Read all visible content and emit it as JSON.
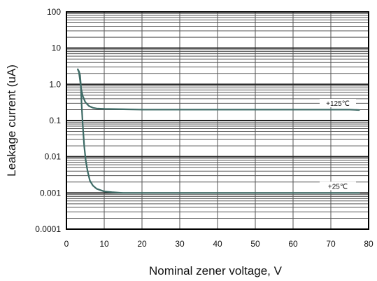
{
  "chart_data": {
    "type": "line",
    "title": "",
    "xlabel": "Nominal zener voltage, V",
    "ylabel": "Leakage current (uA)",
    "x_ticks": [
      "0",
      "10",
      "20",
      "30",
      "40",
      "50",
      "60",
      "70",
      "80"
    ],
    "y_ticks": [
      "100",
      "10",
      "1.0",
      "0.1",
      "0.01",
      "0.001",
      "0.0001"
    ],
    "xlim": [
      0,
      80
    ],
    "ylim": [
      0.0001,
      100
    ],
    "y_scale": "log",
    "grid": true,
    "colors": {
      "series": "#3e6b66",
      "grid": "#555555",
      "frame": "#000000"
    },
    "series": [
      {
        "name": "+125℃",
        "x": [
          3.0,
          3.3,
          3.6,
          3.9,
          4.3,
          5.0,
          6.0,
          7.0,
          8.0,
          10,
          15,
          20,
          30,
          40,
          50,
          60,
          70,
          75,
          77.5
        ],
        "y": [
          2.6,
          2.2,
          1.3,
          0.75,
          0.48,
          0.32,
          0.25,
          0.225,
          0.215,
          0.21,
          0.205,
          0.2,
          0.2,
          0.2,
          0.2,
          0.2,
          0.2,
          0.2,
          0.195
        ]
      },
      {
        "name": "+25℃",
        "x": [
          3.0,
          3.3,
          3.6,
          3.8,
          4.0,
          4.3,
          4.7,
          5.1,
          5.6,
          6.2,
          7.0,
          8.0,
          10,
          12,
          15,
          20,
          30,
          40,
          50,
          60,
          70,
          77.5
        ],
        "y": [
          2.6,
          2.3,
          1.8,
          1.0,
          0.3,
          0.08,
          0.02,
          0.008,
          0.004,
          0.0022,
          0.0016,
          0.0013,
          0.0011,
          0.00105,
          0.001,
          0.001,
          0.001,
          0.001,
          0.001,
          0.001,
          0.001,
          0.001
        ]
      }
    ]
  }
}
